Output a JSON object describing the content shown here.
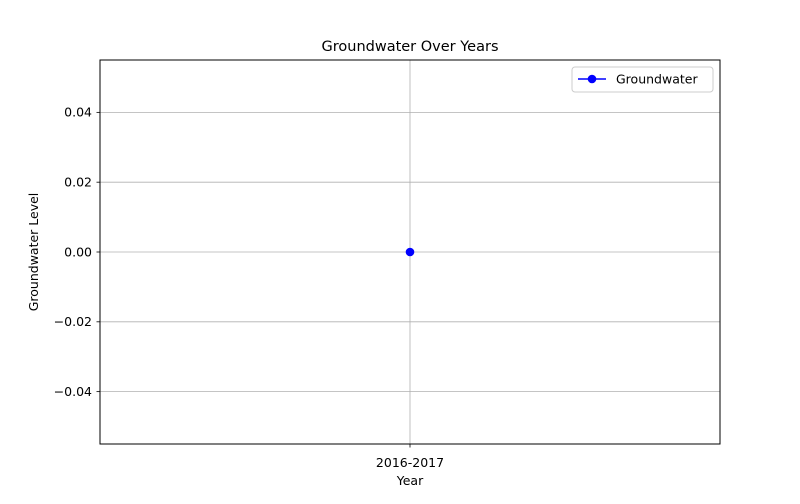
{
  "chart_data": {
    "type": "line",
    "title": "Groundwater Over Years",
    "xlabel": "Year",
    "ylabel": "Groundwater Level",
    "categories": [
      "2016-2017"
    ],
    "series": [
      {
        "name": "Groundwater",
        "values": [
          0.0
        ],
        "color": "#0000ff",
        "marker": "circle"
      }
    ],
    "ylim": [
      -0.055,
      0.055
    ],
    "yticks": [
      -0.04,
      -0.02,
      0.0,
      0.02,
      0.04
    ],
    "ytick_labels": [
      "−0.04",
      "−0.02",
      "0.00",
      "0.02",
      "0.04"
    ],
    "grid": true,
    "legend_position": "top-right"
  }
}
